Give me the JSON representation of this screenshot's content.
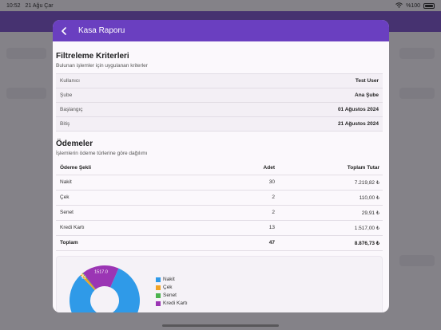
{
  "status_bar": {
    "time": "10:52",
    "date": "21 Ağu Çar",
    "battery": "%100"
  },
  "modal": {
    "title": "Kasa Raporu"
  },
  "filters": {
    "title": "Filtreleme Kriterleri",
    "subtitle": "Bulunan işlemler için uygulanan kriterler",
    "rows": [
      {
        "key": "Kullanıcı",
        "value": "Test User"
      },
      {
        "key": "Şube",
        "value": "Ana Şube"
      },
      {
        "key": "Başlangıç",
        "value": "01 Ağustos 2024"
      },
      {
        "key": "Bitiş",
        "value": "21 Ağustos 2024"
      }
    ]
  },
  "payments": {
    "title": "Ödemeler",
    "subtitle": "İşlemlerin ödeme türlerine göre dağılımı",
    "headers": {
      "type": "Ödeme Şekli",
      "count": "Adet",
      "total": "Toplam Tutar"
    },
    "rows": [
      {
        "type": "Nakit",
        "count": "30",
        "total": "7.219,82 ₺"
      },
      {
        "type": "Çek",
        "count": "2",
        "total": "110,00 ₺"
      },
      {
        "type": "Senet",
        "count": "2",
        "total": "29,91 ₺"
      },
      {
        "type": "Kredi Kartı",
        "count": "13",
        "total": "1.517,00 ₺"
      }
    ],
    "total": {
      "type": "Toplam",
      "count": "47",
      "total": "8.876,73 ₺"
    }
  },
  "chart_data": {
    "type": "pie",
    "categories": [
      "Nakit",
      "Çek",
      "Senet",
      "Kredi Kartı"
    ],
    "values": [
      7219.82,
      110.0,
      29.91,
      1517.0
    ],
    "data_labels": [
      "7219.82",
      "110",
      "29.91",
      "1517.0"
    ],
    "colors": [
      "#2f9ae8",
      "#f2a425",
      "#4bb34e",
      "#9b35b4"
    ],
    "legend": "right"
  }
}
